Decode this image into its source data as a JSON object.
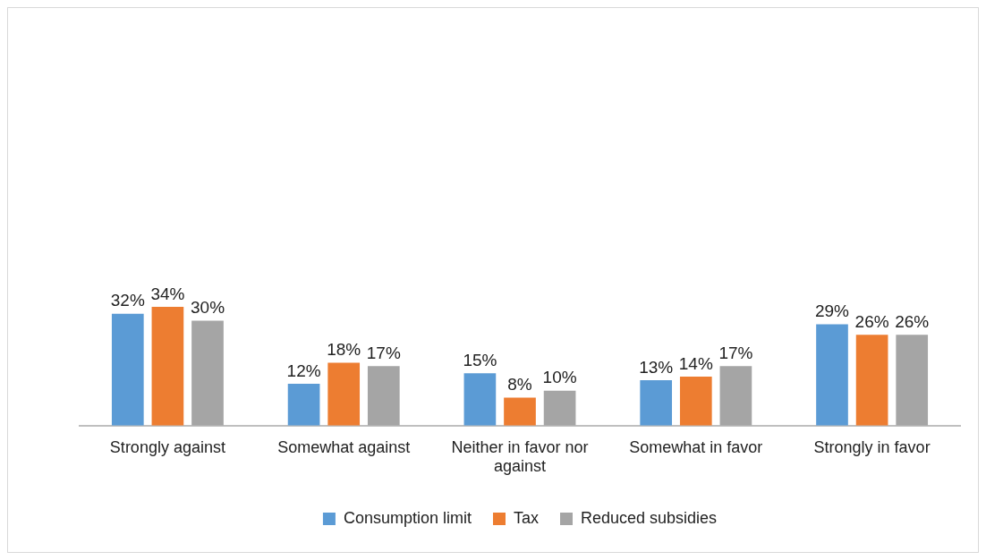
{
  "chart_data": {
    "type": "bar",
    "categories": [
      "Strongly against",
      "Somewhat against",
      "Neither in favor nor against",
      "Somewhat in favor",
      "Strongly in favor"
    ],
    "series": [
      {
        "name": "Consumption limit",
        "color": "#5b9bd5",
        "values": [
          32,
          12,
          15,
          13,
          29
        ],
        "value_labels": [
          "32%",
          "12%",
          "15%",
          "13%",
          "29%"
        ]
      },
      {
        "name": "Tax",
        "color": "#ed7d31",
        "values": [
          34,
          18,
          8,
          14,
          26
        ],
        "value_labels": [
          "34%",
          "18%",
          "8%",
          "14%",
          "26%"
        ]
      },
      {
        "name": "Reduced subsidies",
        "color": "#a5a5a5",
        "values": [
          30,
          17,
          10,
          17,
          26
        ],
        "value_labels": [
          "30%",
          "17%",
          "10%",
          "17%",
          "26%"
        ]
      }
    ],
    "legend": "bottom",
    "grid": false
  }
}
